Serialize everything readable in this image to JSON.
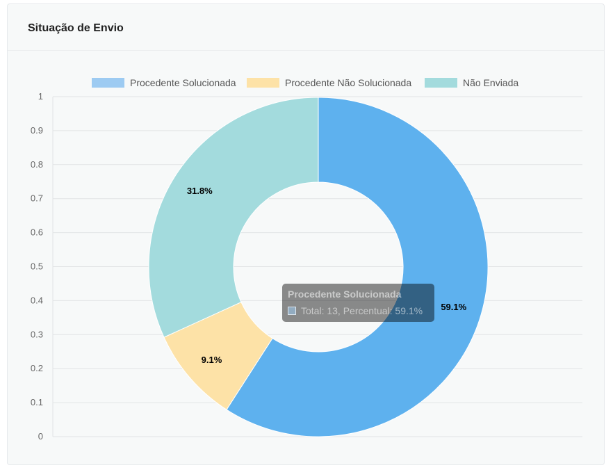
{
  "card": {
    "title": "Situação de Envio"
  },
  "chart_data": {
    "type": "pie",
    "variant": "doughnut",
    "title": "",
    "categories": [
      "Procedente Solucionada",
      "Procedente Não Solucionada",
      "Não Enviada"
    ],
    "values": [
      59.1,
      9.1,
      31.8
    ],
    "labels": [
      "59.1%",
      "9.1%",
      "31.8%"
    ],
    "colors": [
      "#5eb1ee",
      "#fde2a7",
      "#a3dbdd"
    ],
    "legend_colors": [
      "#9dcbf2",
      "#fde2a7",
      "#a3dbdd"
    ],
    "legend": "top",
    "y_ticks": [
      "0",
      "0.1",
      "0.2",
      "0.3",
      "0.4",
      "0.5",
      "0.6",
      "0.7",
      "0.8",
      "0.9",
      "1"
    ],
    "ylim": [
      0,
      1
    ],
    "grid": true
  },
  "tooltip": {
    "title": "Procedente Solucionada",
    "text": "Total: 13,  Percentual: 59.1%"
  }
}
